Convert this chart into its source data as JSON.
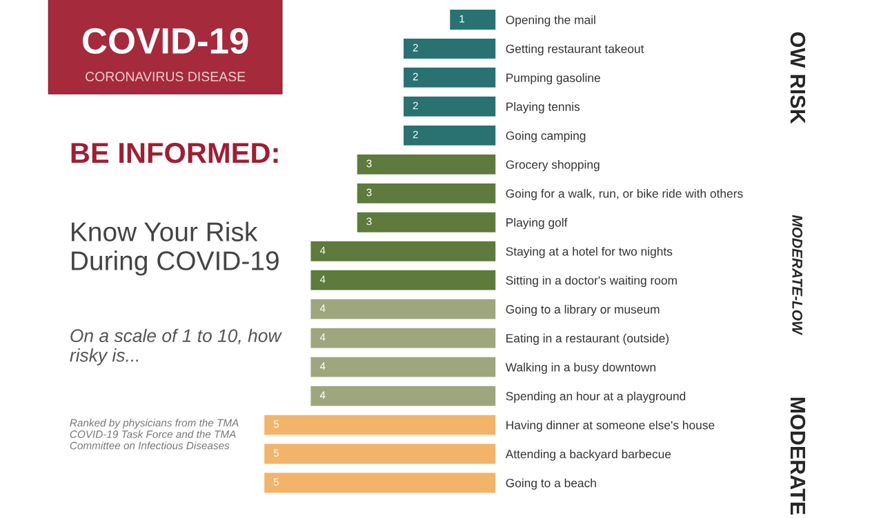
{
  "chart_data": {
    "type": "bar",
    "orientation": "horizontal",
    "title": "COVID-19",
    "subtitle": "CORONAVIRUS DISEASE",
    "categories": [
      "Opening the mail",
      "Getting restaurant takeout",
      "Pumping gasoline",
      "Playing tennis",
      "Going camping",
      "Grocery shopping",
      "Going for a walk, run, or bike ride with others",
      "Playing golf",
      "Staying at a hotel for two nights",
      "Sitting in a doctor's waiting room",
      "Going to a library or museum",
      "Eating in a restaurant (outside)",
      "Walking in a busy downtown",
      "Spending an hour at a playground",
      "Having dinner at someone else's house",
      "Attending a backyard barbecue",
      "Going to a beach"
    ],
    "values": [
      1,
      2,
      2,
      2,
      2,
      3,
      3,
      3,
      4,
      4,
      4,
      4,
      4,
      4,
      5,
      5,
      5
    ],
    "colors": [
      "#2a7272",
      "#2a7272",
      "#2a7272",
      "#2a7272",
      "#2a7272",
      "#5e7a3c",
      "#5e7a3c",
      "#5e7a3c",
      "#5e7a3c",
      "#5e7a3c",
      "#9ea67e",
      "#9ea67e",
      "#9ea67e",
      "#9ea67e",
      "#f2b46a",
      "#f2b46a",
      "#f2b46a"
    ],
    "data_labels": true,
    "tick_labels": "y",
    "grid": false,
    "annotations": [
      "BE INFORMED:",
      "Know Your Risk During COVID-19",
      "On a scale of 1 to 10, how risky is...",
      "Ranked by physicians from the TMA COVID-19 Task Force and the TMA Committee on Infectious Diseases",
      "OW RISK",
      "MODERATE-LOW",
      "MODERATE"
    ]
  }
}
